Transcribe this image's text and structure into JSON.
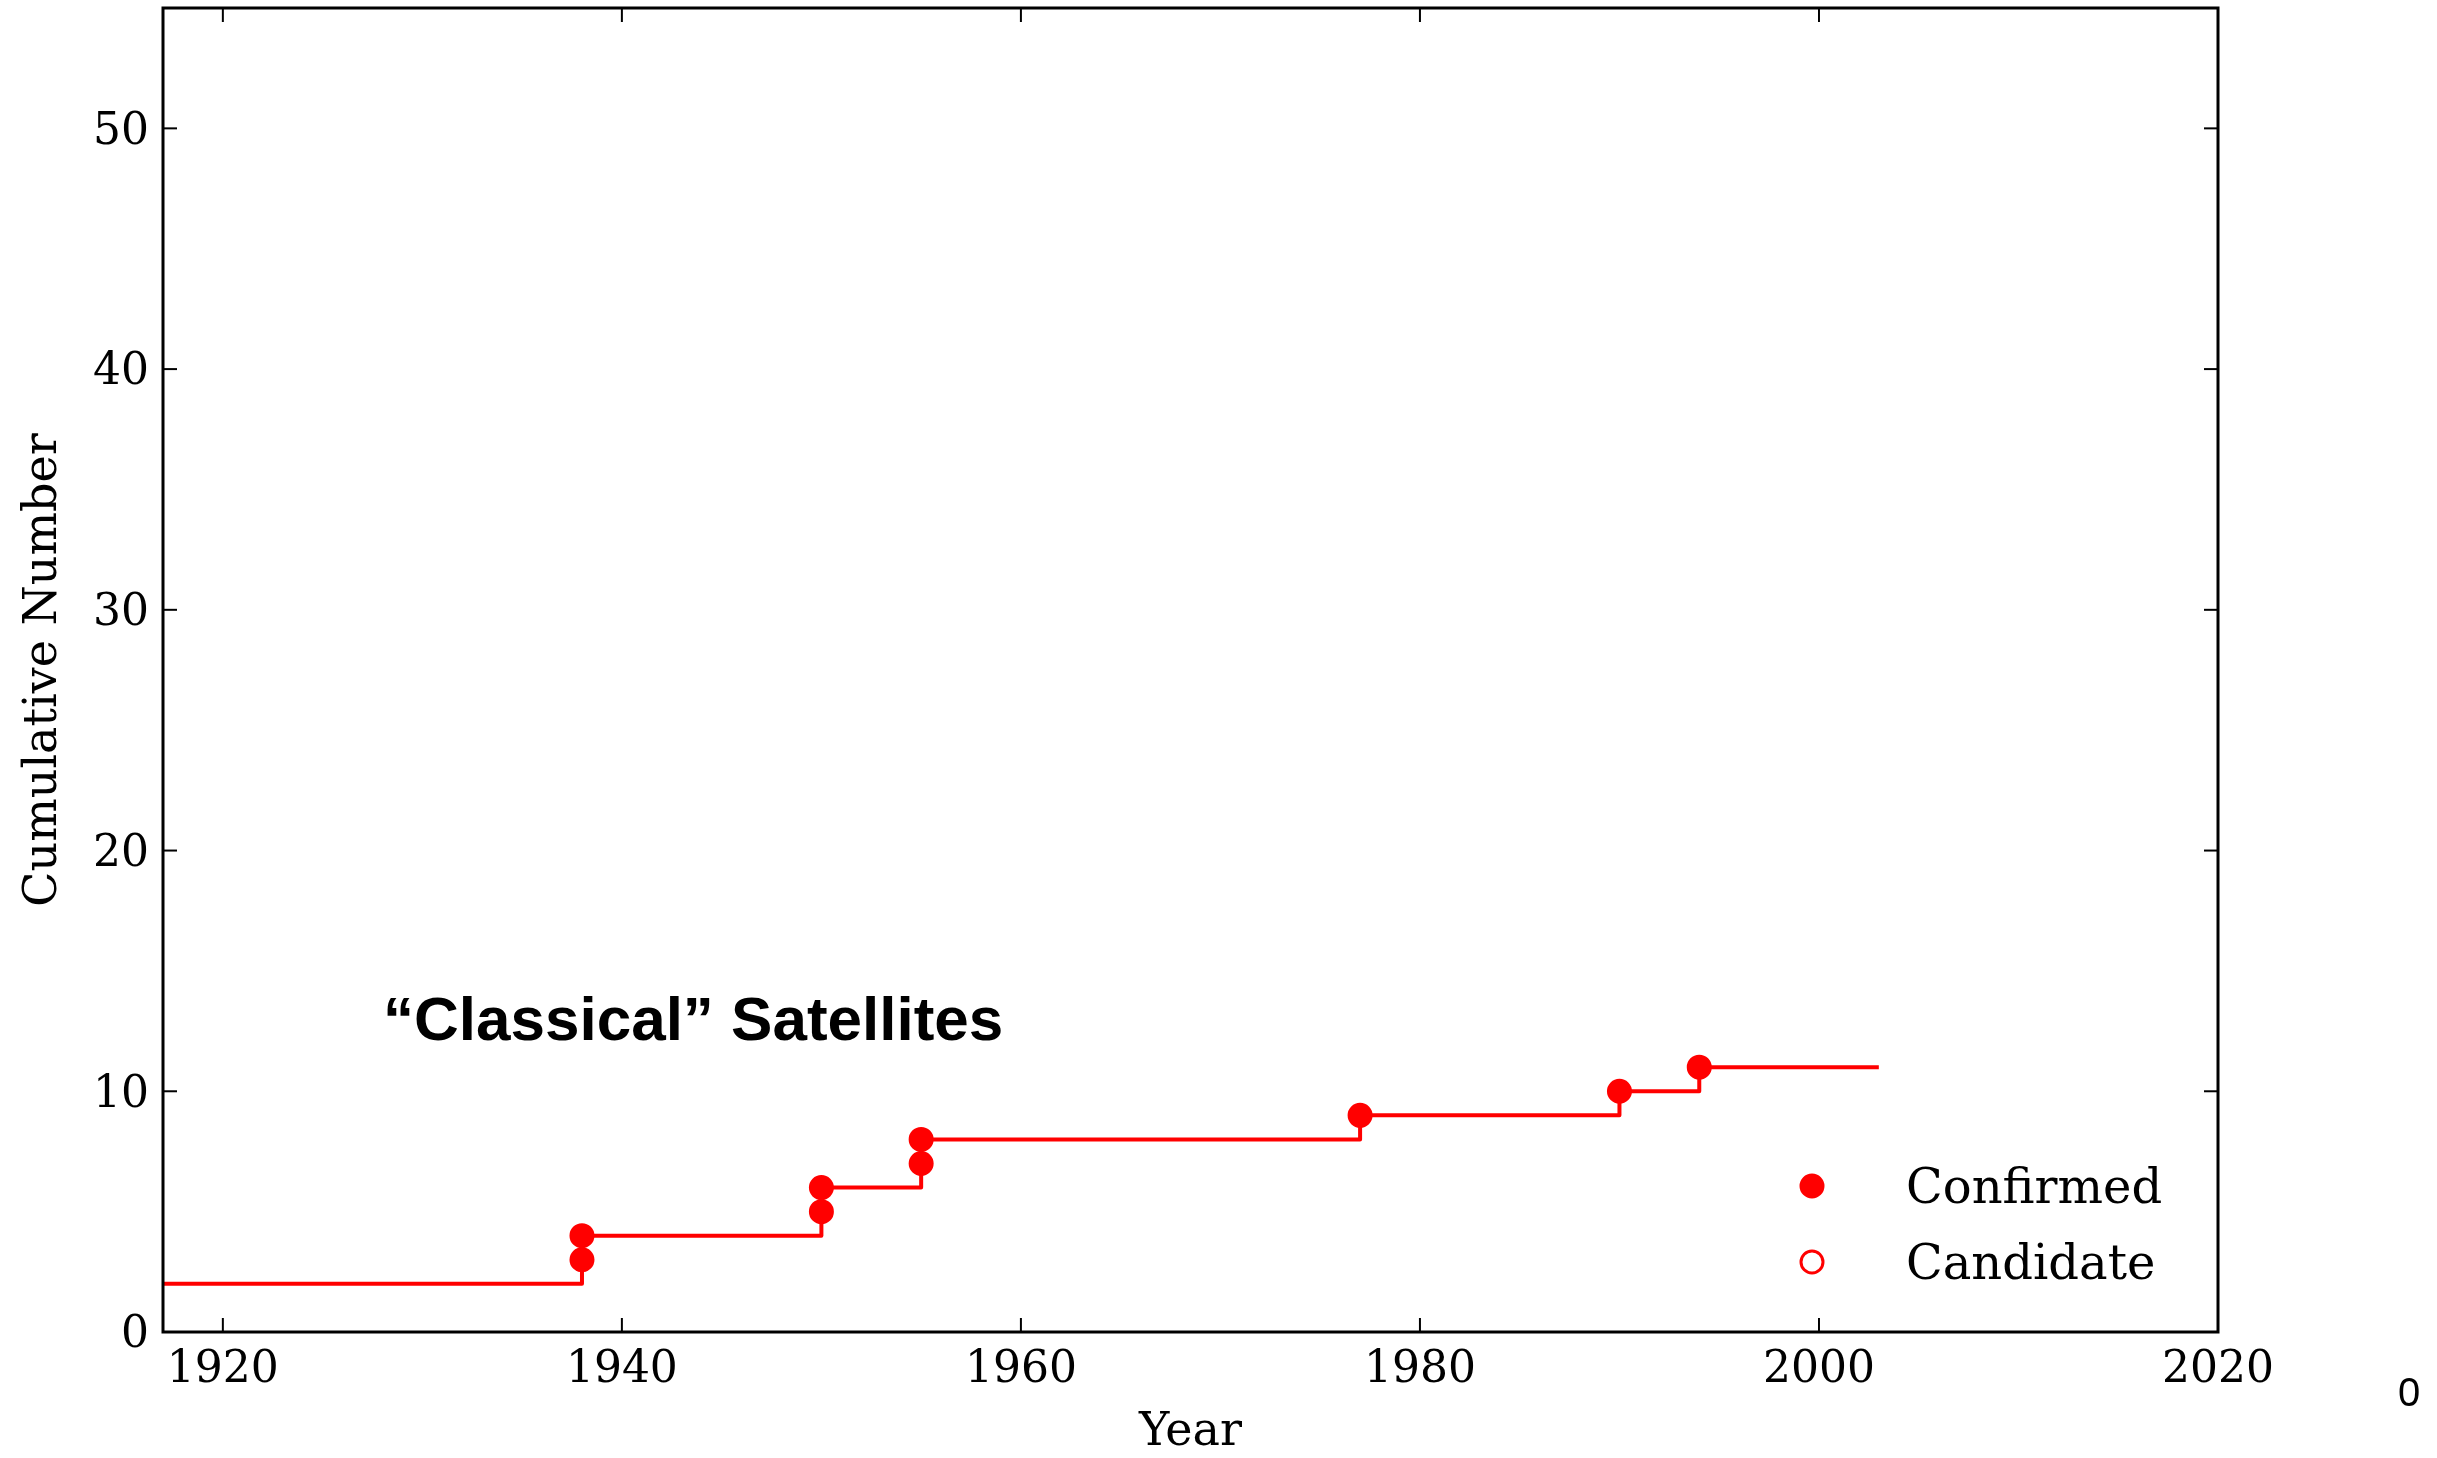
{
  "chart_data": {
    "type": "step",
    "xlabel": "Year",
    "ylabel": "Cumulative Number",
    "xlim": [
      1917,
      2020
    ],
    "xticks": [
      1920,
      1940,
      1960,
      1980,
      2000,
      2020
    ],
    "ylim": [
      0,
      55
    ],
    "yticks": [
      0,
      10,
      20,
      30,
      40,
      50
    ],
    "series": [
      {
        "marker": "none",
        "color": "#ff0000",
        "x": [
          1917,
          1938,
          1950,
          1955,
          1977,
          1990,
          1994,
          2003
        ],
        "values": [
          2,
          4,
          6,
          8,
          9,
          10,
          11,
          11
        ]
      },
      {
        "type": "scatter",
        "marker": "circle",
        "name": "Confirmed",
        "color": "#ff0000",
        "x": [
          1938,
          1938,
          1950,
          1950,
          1955,
          1955,
          1977,
          1990,
          1994
        ],
        "values": [
          3,
          4,
          5,
          6,
          7,
          8,
          9,
          10,
          11
        ]
      },
      {
        "type": "scatter",
        "marker": "circle",
        "name": "Candidate",
        "color": "#ff0000"
      }
    ],
    "grid": false,
    "legend": "bottom right",
    "annotations": [
      "“Classical” Satellites",
      "0"
    ]
  }
}
